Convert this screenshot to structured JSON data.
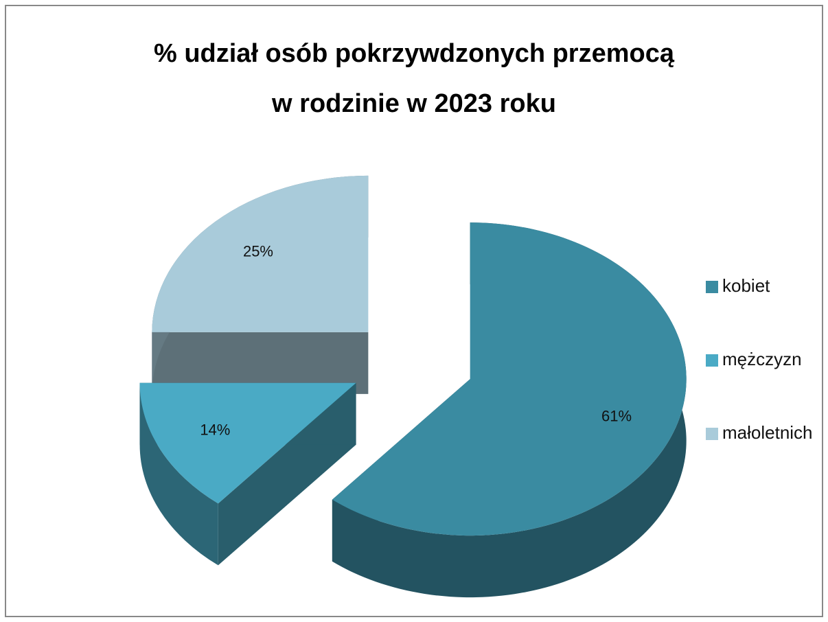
{
  "chart_data": {
    "type": "pie3d",
    "title": [
      "% udział osób pokrzywdzonych przemocą",
      "w rodzinie w 2023 roku"
    ],
    "categories": [
      "kobiet",
      "mężczyzn",
      "małoletnich"
    ],
    "values": [
      61,
      14,
      25
    ],
    "value_labels": [
      "61%",
      "14%",
      "25%"
    ],
    "colors": [
      "#3a8ba1",
      "#4aaac5",
      "#a9cbda"
    ],
    "legend": "right"
  }
}
